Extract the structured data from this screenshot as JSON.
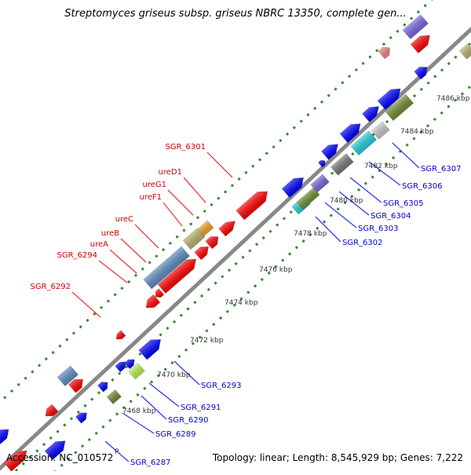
{
  "title": "Streptomyces griseus subsp. griseus NBRC 13350, complete gen...",
  "footer": {
    "accession": "Accession: NC_010572",
    "summary": "Topology: linear; Length: 8,545,929 bp; Genes: 7,222"
  },
  "kbp_labels": [
    "7468 kbp",
    "7470 kbp",
    "7472 kbp",
    "7474 kbp",
    "7476 kbp",
    "7478 kbp",
    "7480 kbp",
    "7482 kbp",
    "7484 kbp",
    "7486 kbp"
  ],
  "red_labels": [
    "SGR_6292",
    "SGR_6294",
    "ureA",
    "ureB",
    "ureC",
    "ureF1",
    "ureG1",
    "ureD1",
    "SGR_6301"
  ],
  "blue_labels": [
    "SGR_6287",
    "SGR_6289",
    "SGR_6290",
    "SGR_6291",
    "SGR_6293",
    "SGR_6302",
    "SGR_6303",
    "SGR_6304",
    "SGR_6305",
    "SGR_6306",
    "SGR_6307"
  ],
  "partial_label": "P",
  "colors": {
    "red": "#ff0000",
    "red_label": "#cc0000",
    "blue": "#0000ff",
    "blue_label": "#0000cc",
    "backbone": "#888888",
    "dots": "#2e8b2e",
    "steelblue": "#5b8cc0",
    "khaki": "#b9b26d",
    "orange": "#f0a020",
    "olive": "#6e8b2e",
    "cyan": "#22ccdd",
    "purple": "#7766dd",
    "grey": "#777777",
    "silver": "#c8c8c8",
    "pink": "#f08080",
    "lime": "#b8f050"
  }
}
